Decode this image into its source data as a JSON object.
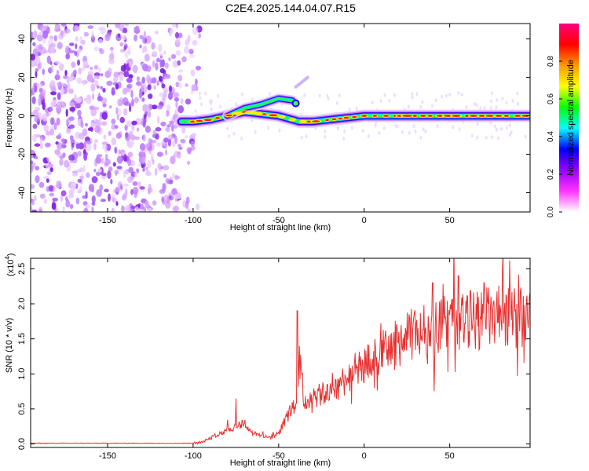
{
  "title": "C2E4.2025.144.04.07.R15",
  "chart_data": [
    {
      "type": "heatmap",
      "title": "C2E4.2025.144.04.07.R15",
      "xlabel": "Height of straight line (km)",
      "ylabel": "Frequency (Hz)",
      "xlim": [
        -195,
        97
      ],
      "ylim": [
        -50,
        48
      ],
      "x_ticks": [
        -150,
        -100,
        -50,
        0,
        50
      ],
      "y_ticks": [
        -40,
        -20,
        0,
        20,
        40
      ],
      "colorbar": {
        "label": "Normalized spectral amplitude",
        "range": [
          0,
          1
        ],
        "ticks": [
          0.0,
          0.2,
          0.4,
          0.6,
          0.8
        ],
        "tick_labels": [
          "0.0",
          "0.2",
          "0.4",
          "0.6",
          "0.8"
        ],
        "colors": [
          "#ffffff",
          "#ff33ff",
          "#9900ff",
          "#0000ff",
          "#00ffff",
          "#00ff00",
          "#ffff00",
          "#ff9900",
          "#ff0000",
          "#ff0080"
        ]
      },
      "features": {
        "noise_region_x": [
          -195,
          -100
        ],
        "noise_freq_range": [
          -50,
          48
        ],
        "main_trace": [
          {
            "x": -107,
            "f": -3
          },
          {
            "x": -100,
            "f": -3
          },
          {
            "x": -90,
            "f": -2
          },
          {
            "x": -80,
            "f": 0
          },
          {
            "x": -70,
            "f": 2
          },
          {
            "x": -60,
            "f": 1
          },
          {
            "x": -50,
            "f": 0
          },
          {
            "x": -42,
            "f": -2
          },
          {
            "x": -38,
            "f": -3
          },
          {
            "x": -30,
            "f": -3
          },
          {
            "x": -20,
            "f": -2
          },
          {
            "x": -10,
            "f": -1
          },
          {
            "x": 0,
            "f": 0
          },
          {
            "x": 10,
            "f": 0
          },
          {
            "x": 20,
            "f": 0
          },
          {
            "x": 30,
            "f": 0
          },
          {
            "x": 40,
            "f": 0
          },
          {
            "x": 50,
            "f": 0
          },
          {
            "x": 60,
            "f": 0
          },
          {
            "x": 70,
            "f": 0
          },
          {
            "x": 80,
            "f": 0
          },
          {
            "x": 90,
            "f": 0
          },
          {
            "x": 96,
            "f": 0
          }
        ],
        "upper_branch": [
          {
            "x": -80,
            "f": 0
          },
          {
            "x": -70,
            "f": 4
          },
          {
            "x": -60,
            "f": 6
          },
          {
            "x": -50,
            "f": 9
          },
          {
            "x": -42,
            "f": 8
          }
        ],
        "faint_branch": [
          {
            "x": -40,
            "f": 15
          },
          {
            "x": -33,
            "f": 20
          }
        ]
      }
    },
    {
      "type": "line",
      "xlabel": "Height of straight line (km)",
      "ylabel": "SNR (10 * v/v)",
      "y_multiplier": "(x10",
      "y_multiplier_exp": "4",
      "xlim": [
        -195,
        97
      ],
      "ylim": [
        -0.05,
        2.65
      ],
      "x_ticks": [
        -150,
        -100,
        -50,
        0,
        50
      ],
      "y_ticks": [
        0.0,
        0.5,
        1.0,
        1.5,
        2.0,
        2.5
      ],
      "y_tick_labels": [
        "0.0",
        "0.5",
        "1.0",
        "1.5",
        "2.0",
        "2.5"
      ],
      "line_color": "#e83030",
      "series": [
        {
          "x": [
            -195,
            -150,
            -110,
            -100,
            -95,
            -90,
            -85,
            -80,
            -75,
            -70,
            -65,
            -60,
            -55,
            -50,
            -45,
            -40,
            -38,
            -35,
            -30,
            -25,
            -20,
            -15,
            -10,
            -5,
            0,
            5,
            10,
            15,
            20,
            25,
            30,
            35,
            40,
            45,
            50,
            55,
            60,
            65,
            70,
            75,
            80,
            85,
            90,
            96
          ],
          "values": [
            0.0,
            0.0,
            0.0,
            0.01,
            0.03,
            0.08,
            0.15,
            0.2,
            0.25,
            0.3,
            0.15,
            0.12,
            0.1,
            0.15,
            0.4,
            0.55,
            1.2,
            0.6,
            0.65,
            0.7,
            0.75,
            0.85,
            0.95,
            1.05,
            1.1,
            1.2,
            1.3,
            1.35,
            1.45,
            1.5,
            1.6,
            1.62,
            1.65,
            1.7,
            1.72,
            1.75,
            1.75,
            1.78,
            1.8,
            1.8,
            1.82,
            1.78,
            1.8,
            1.8
          ]
        }
      ],
      "spikes": [
        {
          "x": -39,
          "value": 1.9
        },
        {
          "x": -75,
          "value": 0.65
        },
        {
          "x": 40,
          "value": 2.3
        },
        {
          "x": 55,
          "value": 2.4
        },
        {
          "x": 70,
          "value": 2.3
        },
        {
          "x": 85,
          "value": 2.62
        },
        {
          "x": 92,
          "value": 2.05
        }
      ]
    }
  ]
}
